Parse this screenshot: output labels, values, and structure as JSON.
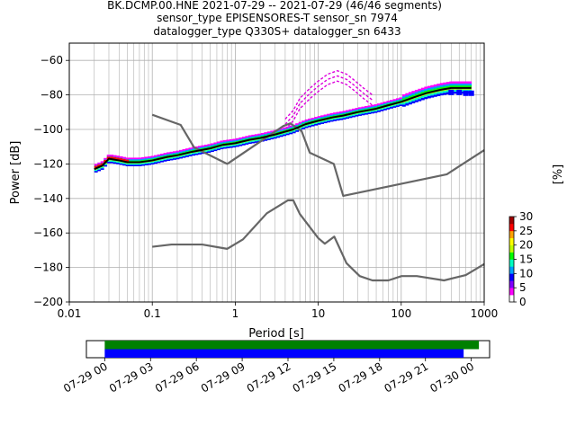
{
  "chart_data": [
    {
      "type": "heatmap",
      "title": "BK.DCMP.00.HNE   2021-07-29 -- 2021-07-29  (46/46 segments)",
      "subtitle_lines": [
        "sensor_type EPISENSORES-T sensor_sn 7974",
        "datalogger_type Q330S+ datalogger_sn 6433"
      ],
      "xlabel": "Period [s]",
      "ylabel": "Power [dB]",
      "xscale": "log",
      "xlim": [
        0.01,
        1000
      ],
      "ylim": [
        -200,
        -50
      ],
      "xticks": [
        0.01,
        0.1,
        1,
        10,
        100,
        1000
      ],
      "xtick_labels": [
        "0.01",
        "0.1",
        "1",
        "10",
        "100",
        "1000"
      ],
      "yticks": [
        -200,
        -180,
        -160,
        -140,
        -120,
        -100,
        -80,
        -60
      ],
      "ytick_labels": [
        "−200",
        "−180",
        "−160",
        "−140",
        "−120",
        "−100",
        "−80",
        "−60"
      ],
      "grid": true,
      "series": [
        {
          "role": "mean",
          "color": "#000000",
          "x": [
            0.02,
            0.025,
            0.03,
            0.04,
            0.05,
            0.07,
            0.1,
            0.15,
            0.2,
            0.3,
            0.5,
            0.7,
            1,
            1.5,
            2,
            3,
            5,
            7,
            10,
            15,
            20,
            30,
            50,
            70,
            100,
            150,
            200,
            300,
            400,
            500,
            700
          ],
          "y": [
            -123,
            -121,
            -117,
            -118,
            -119,
            -119,
            -118,
            -116,
            -115,
            -113,
            -111,
            -109,
            -108,
            -106,
            -105,
            -103,
            -100,
            -97,
            -95,
            -93,
            -92,
            -90,
            -88,
            -86,
            -84,
            -81,
            -79,
            -77,
            -76,
            -76,
            -76
          ]
        },
        {
          "role": "high-noise-model",
          "color": "#666666",
          "x": [
            0.1,
            0.22,
            0.32,
            0.8,
            3.8,
            4.6,
            6.3,
            7.9,
            15.4,
            20,
            354.8,
            1000
          ],
          "y": [
            -91.5,
            -97.4,
            -110.5,
            -120,
            -98,
            -96.5,
            -101,
            -113.5,
            -120,
            -138.5,
            -126,
            -112
          ]
        },
        {
          "role": "low-noise-model",
          "color": "#666666",
          "x": [
            0.1,
            0.17,
            0.4,
            0.8,
            1.24,
            2.4,
            4.3,
            5,
            6,
            10,
            12,
            15.6,
            21.9,
            31.6,
            45,
            70,
            101,
            154,
            328,
            600,
            1000
          ],
          "y": [
            -168,
            -166.7,
            -166.7,
            -169.2,
            -163.7,
            -148.6,
            -141.1,
            -141.1,
            -149,
            -163,
            -166.2,
            -162.1,
            -177.5,
            -185,
            -187.5,
            -187.5,
            -185,
            -185,
            -187.5,
            -184.4,
            -178
          ]
        },
        {
          "role": "outlier-excursion",
          "color": "#dd00dd",
          "x": [
            4,
            5,
            6,
            8,
            10,
            13,
            17,
            22,
            28,
            35,
            45
          ],
          "y": [
            -100,
            -95,
            -88,
            -82,
            -78,
            -74,
            -72,
            -74,
            -78,
            -82,
            -86
          ]
        }
      ],
      "colorbar": {
        "label": "[%]",
        "ticks": [
          0,
          5,
          10,
          15,
          20,
          25,
          30
        ],
        "range": [
          0,
          30
        ],
        "colors": [
          "#ffffff",
          "#ff00ff",
          "#8000ff",
          "#0000ff",
          "#00a0ff",
          "#00ffc0",
          "#00ff00",
          "#c0ff00",
          "#ffff00",
          "#ffa000",
          "#ff0000",
          "#a00000"
        ]
      }
    },
    {
      "type": "timeline",
      "tick_labels": [
        "07-29 00",
        "07-29 03",
        "07-29 06",
        "07-29 09",
        "07-29 12",
        "07-29 15",
        "07-29 18",
        "07-29 21",
        "07-30 00"
      ],
      "tick_hours": [
        0,
        3,
        6,
        9,
        12,
        15,
        18,
        21,
        24
      ],
      "range_hours": [
        -1.2,
        25.2
      ],
      "bars": [
        {
          "color": "#008000",
          "start_hour": 0,
          "end_hour": 24.5
        },
        {
          "color": "#0000ff",
          "start_hour": 0,
          "end_hour": 23.5
        }
      ]
    }
  ]
}
